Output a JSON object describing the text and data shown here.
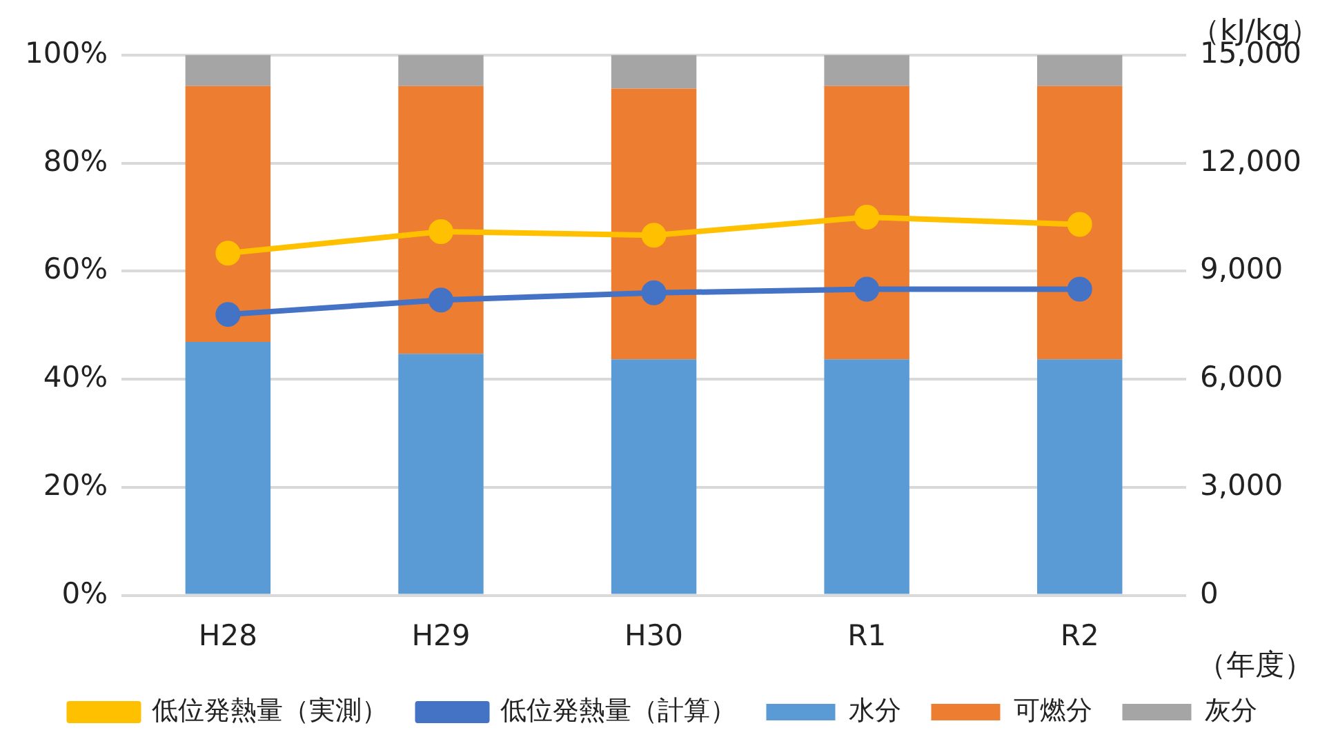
{
  "chart_data": {
    "type": "bar",
    "stacked": true,
    "categories": [
      "H28",
      "H29",
      "H30",
      "R1",
      "R2"
    ],
    "series": [
      {
        "name": "水分",
        "color": "#5b9bd5",
        "values": [
          46.9,
          44.7,
          43.7,
          43.7,
          43.7
        ]
      },
      {
        "name": "可燃分",
        "color": "#ed7d31",
        "values": [
          47.4,
          49.6,
          50.1,
          50.6,
          50.6
        ]
      },
      {
        "name": "灰分",
        "color": "#a5a5a5",
        "values": [
          5.7,
          5.7,
          6.2,
          5.7,
          5.7
        ]
      },
      {
        "name": "低位発熱量（実測）",
        "type": "line",
        "axis": "y2",
        "color": "#ffc000",
        "values": [
          9500,
          10100,
          10000,
          10500,
          10300
        ]
      },
      {
        "name": "低位発熱量（計算）",
        "type": "line",
        "axis": "y2",
        "color": "#4472c4",
        "values": [
          7800,
          8200,
          8400,
          8500,
          8500
        ]
      }
    ],
    "ylim": [
      0,
      100
    ],
    "yticks": [
      {
        "value": 0,
        "label": "0%"
      },
      {
        "value": 20,
        "label": "20%"
      },
      {
        "value": 40,
        "label": "40%"
      },
      {
        "value": 60,
        "label": "60%"
      },
      {
        "value": 80,
        "label": "80%"
      },
      {
        "value": 100,
        "label": "100%"
      }
    ],
    "y2lim": [
      0,
      15000
    ],
    "y2ticks": [
      0,
      {
        "value": 3000,
        "label": "3,000"
      },
      {
        "value": 6000,
        "label": "6,000"
      },
      {
        "value": 9000,
        "label": "9,000"
      },
      {
        "value": 12000,
        "label": "12,000"
      },
      {
        "value": 15000,
        "label": "15,000"
      }
    ],
    "y2label": "（kJ/kg）",
    "xlabel": "（年度）",
    "grid": "y",
    "legend": "bottom",
    "marker": "circle",
    "line_style": "solid"
  }
}
